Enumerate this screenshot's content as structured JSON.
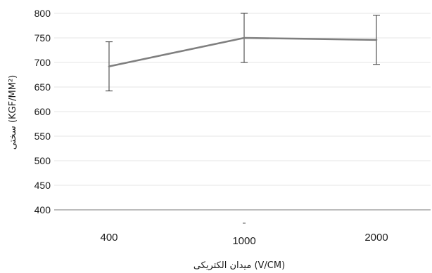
{
  "chart_data": {
    "type": "line",
    "categories": [
      "400",
      "1000",
      "2000"
    ],
    "series": [
      {
        "values": [
          692,
          750,
          746
        ],
        "error": [
          50,
          50,
          50
        ],
        "color": "#7f7f7f"
      }
    ],
    "ylim": [
      400,
      800
    ],
    "yticks": [
      "400",
      "450",
      "500",
      "550",
      "600",
      "650",
      "700",
      "750",
      "800"
    ],
    "xlabel": "میدان الکتریکی (V/CM)",
    "ylabel": "سختی (KGF/MM²)",
    "grid": true,
    "legend": "none"
  }
}
